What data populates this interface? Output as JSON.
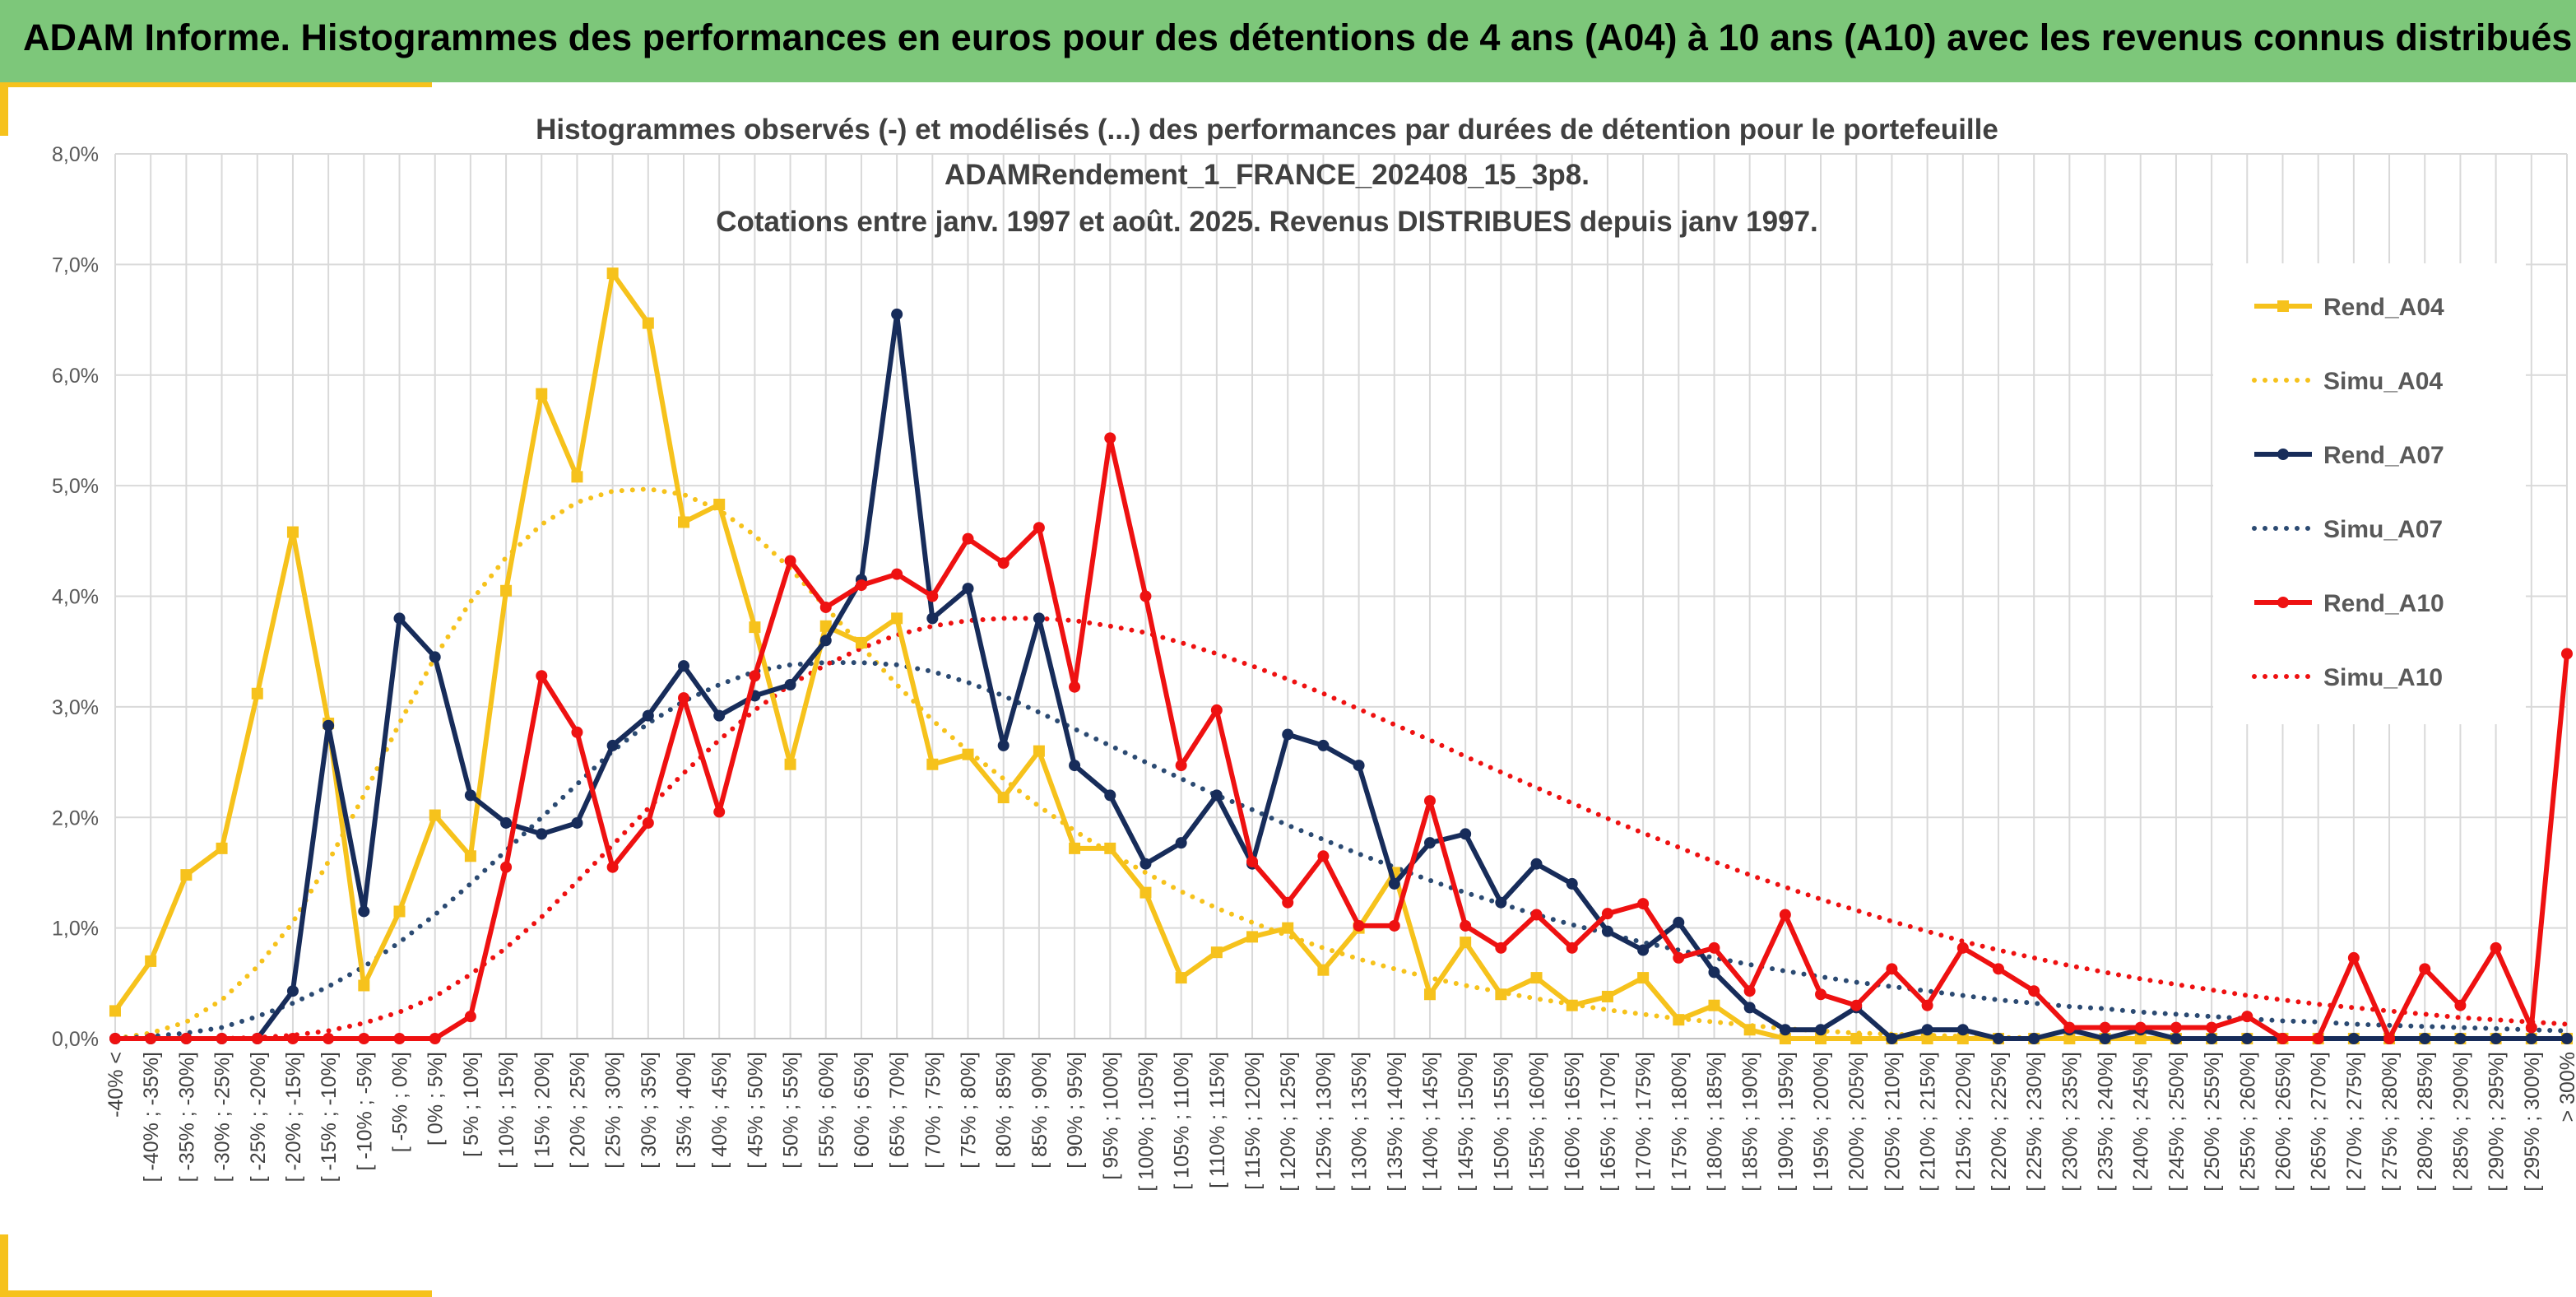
{
  "header": {
    "title": "ADAM Informe. Histogrammes des performances en euros pour des détentions de 4 ans (A04) à 10 ans (A10) avec les revenus connus distribués"
  },
  "chart_data": {
    "type": "line",
    "title": [
      "Histogrammes observés (-) et modélisés (...) des performances par durées de détention pour le portefeuille",
      "ADAMRendement_1_FRANCE_202408_15_3p8.",
      "Cotations entre janv. 1997 et août. 2025. Revenus DISTRIBUES depuis janv 1997."
    ],
    "xlabel": "",
    "ylabel": "",
    "ylim": [
      0,
      8
    ],
    "yticks": [
      "0,0%",
      "1,0%",
      "2,0%",
      "3,0%",
      "4,0%",
      "5,0%",
      "6,0%",
      "7,0%",
      "8,0%"
    ],
    "grid": true,
    "legend_position": "right",
    "categories": [
      "-40% <",
      "[ -40% ; -35%]",
      "[ -35% ; -30%]",
      "[ -30% ; -25%]",
      "[ -25% ; -20%]",
      "[ -20% ; -15%]",
      "[ -15% ; -10%]",
      "[ -10% ; -5%]",
      "[ -5% ; 0%]",
      "[ 0% ; 5%]",
      "[ 5% ; 10%]",
      "[ 10% ; 15%]",
      "[ 15% ; 20%]",
      "[ 20% ; 25%]",
      "[ 25% ; 30%]",
      "[ 30% ; 35%]",
      "[ 35% ; 40%]",
      "[ 40% ; 45%]",
      "[ 45% ; 50%]",
      "[ 50% ; 55%]",
      "[ 55% ; 60%]",
      "[ 60% ; 65%]",
      "[ 65% ; 70%]",
      "[ 70% ; 75%]",
      "[ 75% ; 80%]",
      "[ 80% ; 85%]",
      "[ 85% ; 90%]",
      "[ 90% ; 95%]",
      "[ 95% ; 100%]",
      "[ 100% ; 105%]",
      "[ 105% ; 110%]",
      "[ 110% ; 115%]",
      "[ 115% ; 120%]",
      "[ 120% ; 125%]",
      "[ 125% ; 130%]",
      "[ 130% ; 135%]",
      "[ 135% ; 140%]",
      "[ 140% ; 145%]",
      "[ 145% ; 150%]",
      "[ 150% ; 155%]",
      "[ 155% ; 160%]",
      "[ 160% ; 165%]",
      "[ 165% ; 170%]",
      "[ 170% ; 175%]",
      "[ 175% ; 180%]",
      "[ 180% ; 185%]",
      "[ 185% ; 190%]",
      "[ 190% ; 195%]",
      "[ 195% ; 200%]",
      "[ 200% ; 205%]",
      "[ 205% ; 210%]",
      "[ 210% ; 215%]",
      "[ 215% ; 220%]",
      "[ 220% ; 225%]",
      "[ 225% ; 230%]",
      "[ 230% ; 235%]",
      "[ 235% ; 240%]",
      "[ 240% ; 245%]",
      "[ 245% ; 250%]",
      "[ 250% ; 255%]",
      "[ 255% ; 260%]",
      "[ 260% ; 265%]",
      "[ 265% ; 270%]",
      "[ 270% ; 275%]",
      "[ 275% ; 280%]",
      "[ 280% ; 285%]",
      "[ 285% ; 290%]",
      "[ 290% ; 295%]",
      "[ 295% ; 300%]",
      "> 300%"
    ],
    "series": [
      {
        "name": "Rend_A04",
        "style": "solid",
        "marker": "square",
        "color": "#f6c21c",
        "values": [
          0.25,
          0.7,
          1.48,
          1.72,
          3.12,
          4.58,
          2.85,
          0.48,
          1.15,
          2.02,
          1.65,
          4.05,
          5.83,
          5.08,
          6.92,
          6.47,
          4.67,
          4.83,
          3.72,
          2.48,
          3.73,
          3.58,
          3.8,
          2.48,
          2.57,
          2.18,
          2.6,
          1.72,
          1.72,
          1.32,
          0.55,
          0.78,
          0.92,
          1.0,
          0.62,
          1.0,
          1.5,
          0.4,
          0.87,
          0.4,
          0.55,
          0.3,
          0.38,
          0.55,
          0.17,
          0.3,
          0.08,
          0.0,
          0.0,
          0.0,
          0.0,
          0.0,
          0.0,
          0.0,
          0.0,
          0.0,
          0.0,
          0.0,
          0.0,
          0.0,
          0.0,
          0.0,
          0.0,
          0.0,
          0.0,
          0.0,
          0.0,
          0.0,
          0.0,
          0.0
        ]
      },
      {
        "name": "Simu_A04",
        "style": "dotted",
        "color": "#f6c21c",
        "values": [
          0.0,
          0.05,
          0.15,
          0.35,
          0.65,
          1.05,
          1.6,
          2.2,
          2.85,
          3.45,
          3.95,
          4.35,
          4.65,
          4.85,
          4.95,
          4.97,
          4.92,
          4.78,
          4.55,
          4.25,
          3.9,
          3.55,
          3.2,
          2.88,
          2.6,
          2.35,
          2.1,
          1.88,
          1.68,
          1.5,
          1.33,
          1.18,
          1.05,
          0.93,
          0.82,
          0.72,
          0.63,
          0.55,
          0.48,
          0.42,
          0.36,
          0.31,
          0.26,
          0.22,
          0.18,
          0.15,
          0.12,
          0.09,
          0.07,
          0.05,
          0.04,
          0.03,
          0.02,
          0.01,
          0.01,
          0.0,
          0.0,
          0.0,
          0.0,
          0.0,
          0.0,
          0.0,
          0.0,
          0.0,
          0.0,
          0.0,
          0.0,
          0.0,
          0.0,
          0.0
        ]
      },
      {
        "name": "Rend_A07",
        "style": "solid",
        "marker": "circle",
        "color": "#172c5a",
        "values": [
          0.0,
          0.0,
          0.0,
          0.0,
          0.0,
          0.43,
          2.83,
          1.15,
          3.8,
          3.45,
          2.2,
          1.95,
          1.85,
          1.95,
          2.65,
          2.92,
          3.37,
          2.92,
          3.1,
          3.2,
          3.6,
          4.15,
          6.55,
          3.8,
          4.07,
          2.65,
          3.8,
          2.47,
          2.2,
          1.58,
          1.77,
          2.2,
          1.58,
          2.75,
          2.65,
          2.47,
          1.4,
          1.77,
          1.85,
          1.23,
          1.58,
          1.4,
          0.97,
          0.8,
          1.05,
          0.6,
          0.28,
          0.08,
          0.08,
          0.28,
          0.0,
          0.08,
          0.08,
          0.0,
          0.0,
          0.08,
          0.0,
          0.08,
          0.0,
          0.0,
          0.0,
          0.0,
          0.0,
          0.0,
          0.0,
          0.0,
          0.0,
          0.0,
          0.0,
          0.0
        ]
      },
      {
        "name": "Simu_A07",
        "style": "dotted",
        "color": "#2b4a72",
        "values": [
          0.0,
          0.02,
          0.05,
          0.1,
          0.2,
          0.32,
          0.47,
          0.65,
          0.87,
          1.12,
          1.4,
          1.7,
          2.0,
          2.3,
          2.6,
          2.85,
          3.05,
          3.2,
          3.32,
          3.38,
          3.4,
          3.4,
          3.38,
          3.32,
          3.22,
          3.1,
          2.95,
          2.8,
          2.65,
          2.5,
          2.35,
          2.2,
          2.07,
          1.93,
          1.8,
          1.67,
          1.55,
          1.43,
          1.32,
          1.22,
          1.12,
          1.03,
          0.95,
          0.87,
          0.8,
          0.73,
          0.67,
          0.61,
          0.56,
          0.51,
          0.47,
          0.43,
          0.39,
          0.35,
          0.32,
          0.29,
          0.27,
          0.24,
          0.22,
          0.2,
          0.18,
          0.16,
          0.15,
          0.13,
          0.12,
          0.11,
          0.1,
          0.09,
          0.08,
          0.07
        ]
      },
      {
        "name": "Rend_A10",
        "style": "solid",
        "marker": "circle",
        "color": "#ee1111",
        "values": [
          0.0,
          0.0,
          0.0,
          0.0,
          0.0,
          0.0,
          0.0,
          0.0,
          0.0,
          0.0,
          0.2,
          1.55,
          3.28,
          2.77,
          1.55,
          1.95,
          3.08,
          2.05,
          3.28,
          4.32,
          3.9,
          4.1,
          4.2,
          4.0,
          4.52,
          4.3,
          4.62,
          3.18,
          5.43,
          4.0,
          2.47,
          2.97,
          1.6,
          1.23,
          1.65,
          1.02,
          1.02,
          2.15,
          1.02,
          0.82,
          1.12,
          0.82,
          1.13,
          1.22,
          0.73,
          0.82,
          0.43,
          1.12,
          0.4,
          0.3,
          0.63,
          0.3,
          0.82,
          0.63,
          0.43,
          0.1,
          0.1,
          0.1,
          0.1,
          0.1,
          0.2,
          0.0,
          0.0,
          0.73,
          0.0,
          0.63,
          0.3,
          0.82,
          0.1,
          3.48
        ]
      },
      {
        "name": "Simu_A10",
        "style": "dotted",
        "color": "#ee1111",
        "values": [
          0.0,
          0.0,
          0.0,
          0.0,
          0.01,
          0.03,
          0.07,
          0.14,
          0.24,
          0.38,
          0.58,
          0.82,
          1.1,
          1.42,
          1.75,
          2.08,
          2.4,
          2.7,
          2.97,
          3.2,
          3.38,
          3.53,
          3.65,
          3.73,
          3.78,
          3.8,
          3.8,
          3.78,
          3.73,
          3.67,
          3.58,
          3.48,
          3.37,
          3.25,
          3.12,
          2.98,
          2.84,
          2.7,
          2.55,
          2.41,
          2.27,
          2.13,
          1.99,
          1.86,
          1.73,
          1.6,
          1.48,
          1.37,
          1.26,
          1.16,
          1.06,
          0.97,
          0.88,
          0.8,
          0.73,
          0.66,
          0.6,
          0.54,
          0.49,
          0.44,
          0.39,
          0.35,
          0.31,
          0.28,
          0.25,
          0.22,
          0.19,
          0.17,
          0.15,
          0.13
        ]
      }
    ]
  }
}
